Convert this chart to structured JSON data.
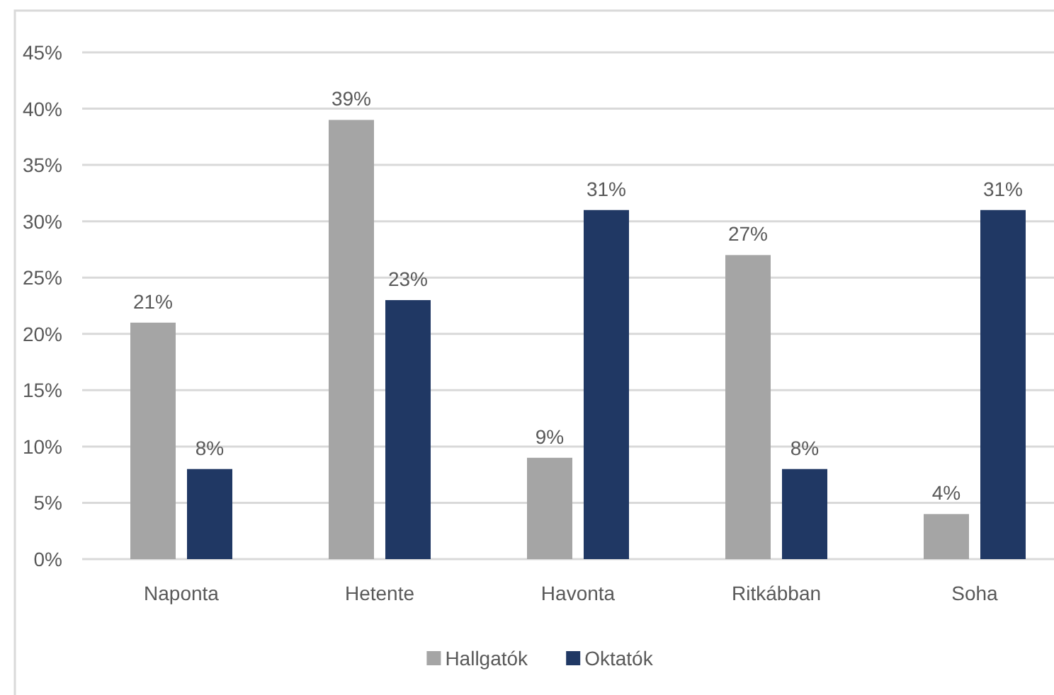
{
  "chart_data": {
    "type": "bar",
    "categories": [
      "Naponta",
      "Hetente",
      "Havonta",
      "Ritkábban",
      "Soha"
    ],
    "series": [
      {
        "name": "Hallgatók",
        "color": "#a5a5a5",
        "values": [
          21,
          39,
          9,
          27,
          4
        ],
        "value_labels": [
          "21%",
          "39%",
          "9%",
          "27%",
          "4%"
        ]
      },
      {
        "name": "Oktatók",
        "color": "#203864",
        "values": [
          8,
          23,
          31,
          8,
          31
        ],
        "value_labels": [
          "8%",
          "23%",
          "31%",
          "8%",
          "31%"
        ]
      }
    ],
    "ylim": [
      0,
      45
    ],
    "yticks": [
      {
        "value": 0,
        "label": "0%"
      },
      {
        "value": 5,
        "label": "5%"
      },
      {
        "value": 10,
        "label": "10%"
      },
      {
        "value": 15,
        "label": "15%"
      },
      {
        "value": 20,
        "label": "20%"
      },
      {
        "value": 25,
        "label": "25%"
      },
      {
        "value": 30,
        "label": "30%"
      },
      {
        "value": 35,
        "label": "35%"
      },
      {
        "value": 40,
        "label": "40%"
      },
      {
        "value": 45,
        "label": "45%"
      }
    ],
    "grid": "y",
    "legend": "bottom"
  }
}
